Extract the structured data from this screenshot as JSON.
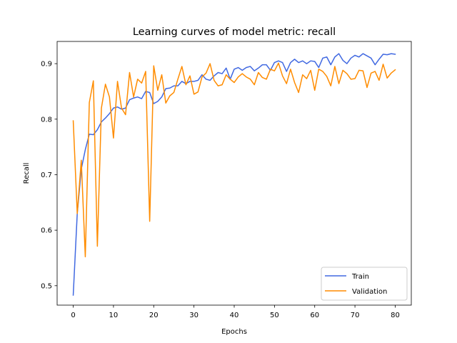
{
  "chart_data": {
    "type": "line",
    "title": "Learning curves of model metric: recall",
    "xlabel": "Epochs",
    "ylabel": "Recall",
    "xlim": [
      -4,
      84
    ],
    "ylim": [
      0.465,
      0.94
    ],
    "xticks": [
      0,
      10,
      20,
      30,
      40,
      50,
      60,
      70,
      80
    ],
    "yticks": [
      0.5,
      0.6,
      0.7,
      0.8,
      0.9
    ],
    "ytick_labels": [
      "0.5",
      "0.6",
      "0.7",
      "0.8",
      "0.9"
    ],
    "grid": false,
    "legend_position": "lower-right",
    "series": [
      {
        "name": "Train",
        "color": "#4169e1",
        "x": [
          0,
          1,
          2,
          3,
          4,
          5,
          6,
          7,
          8,
          9,
          10,
          11,
          12,
          13,
          14,
          15,
          16,
          17,
          18,
          19,
          20,
          21,
          22,
          23,
          24,
          25,
          26,
          27,
          28,
          29,
          30,
          31,
          32,
          33,
          34,
          35,
          36,
          37,
          38,
          39,
          40,
          41,
          42,
          43,
          44,
          45,
          46,
          47,
          48,
          49,
          50,
          51,
          52,
          53,
          54,
          55,
          56,
          57,
          58,
          59,
          60,
          61,
          62,
          63,
          64,
          65,
          66,
          67,
          68,
          69,
          70,
          71,
          72,
          73,
          74,
          75,
          76,
          77,
          78,
          79,
          80
        ],
        "values": [
          0.483,
          0.63,
          0.71,
          0.745,
          0.773,
          0.772,
          0.781,
          0.795,
          0.802,
          0.81,
          0.82,
          0.822,
          0.818,
          0.82,
          0.835,
          0.838,
          0.84,
          0.837,
          0.85,
          0.848,
          0.828,
          0.832,
          0.84,
          0.855,
          0.856,
          0.86,
          0.86,
          0.868,
          0.864,
          0.868,
          0.868,
          0.87,
          0.88,
          0.872,
          0.87,
          0.878,
          0.884,
          0.882,
          0.892,
          0.872,
          0.89,
          0.893,
          0.888,
          0.893,
          0.895,
          0.887,
          0.892,
          0.898,
          0.898,
          0.888,
          0.902,
          0.905,
          0.902,
          0.886,
          0.902,
          0.908,
          0.902,
          0.905,
          0.9,
          0.905,
          0.904,
          0.893,
          0.91,
          0.912,
          0.898,
          0.912,
          0.918,
          0.906,
          0.9,
          0.91,
          0.915,
          0.912,
          0.918,
          0.914,
          0.91,
          0.898,
          0.908,
          0.917,
          0.916,
          0.918,
          0.917
        ]
      },
      {
        "name": "Validation",
        "color": "#ff8c00",
        "x": [
          0,
          1,
          2,
          3,
          4,
          5,
          6,
          7,
          8,
          9,
          10,
          11,
          12,
          13,
          14,
          15,
          16,
          17,
          18,
          19,
          20,
          21,
          22,
          23,
          24,
          25,
          26,
          27,
          28,
          29,
          30,
          31,
          32,
          33,
          34,
          35,
          36,
          37,
          38,
          39,
          40,
          41,
          42,
          43,
          44,
          45,
          46,
          47,
          48,
          49,
          50,
          51,
          52,
          53,
          54,
          55,
          56,
          57,
          58,
          59,
          60,
          61,
          62,
          63,
          64,
          65,
          66,
          67,
          68,
          69,
          70,
          71,
          72,
          73,
          74,
          75,
          76,
          77,
          78,
          79,
          80
        ],
        "values": [
          0.797,
          0.63,
          0.726,
          0.552,
          0.83,
          0.869,
          0.571,
          0.82,
          0.863,
          0.84,
          0.766,
          0.868,
          0.82,
          0.808,
          0.884,
          0.84,
          0.872,
          0.865,
          0.886,
          0.616,
          0.896,
          0.852,
          0.88,
          0.829,
          0.842,
          0.848,
          0.872,
          0.895,
          0.862,
          0.878,
          0.845,
          0.849,
          0.876,
          0.883,
          0.9,
          0.87,
          0.86,
          0.862,
          0.88,
          0.872,
          0.866,
          0.876,
          0.882,
          0.876,
          0.872,
          0.862,
          0.884,
          0.875,
          0.872,
          0.89,
          0.887,
          0.901,
          0.878,
          0.864,
          0.89,
          0.866,
          0.848,
          0.88,
          0.873,
          0.888,
          0.852,
          0.89,
          0.886,
          0.877,
          0.86,
          0.895,
          0.864,
          0.888,
          0.882,
          0.872,
          0.873,
          0.888,
          0.887,
          0.857,
          0.883,
          0.886,
          0.87,
          0.899,
          0.874,
          0.883,
          0.889
        ]
      }
    ]
  }
}
